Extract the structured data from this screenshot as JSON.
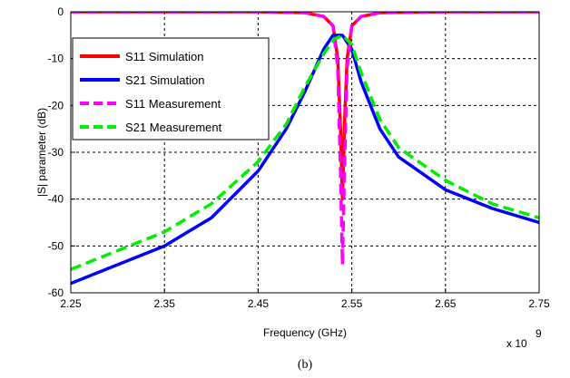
{
  "caption": "(b)",
  "chart_data": {
    "type": "line",
    "title": "",
    "xlabel": "Frequency (GHz)",
    "ylabel": "|S| parameter (dB)",
    "x_multiplier_label": "x 10",
    "x_multiplier_exponent": "9",
    "xlim": [
      2.25,
      2.75
    ],
    "ylim": [
      -60,
      0
    ],
    "xticks": [
      2.25,
      2.35,
      2.45,
      2.55,
      2.65,
      2.75
    ],
    "xtick_labels": [
      "2.25",
      "2.35",
      "2.45",
      "2.55",
      "2.65",
      "2.75"
    ],
    "yticks": [
      0,
      -10,
      -20,
      -30,
      -40,
      -50,
      -60
    ],
    "ytick_labels": [
      "0",
      "-10",
      "-20",
      "-30",
      "-40",
      "-50",
      "-60"
    ],
    "grid": true,
    "legend_position": "upper-left",
    "series": [
      {
        "name": "S11 Simulation",
        "color": "#ff0000",
        "dash": "solid",
        "x": [
          2.25,
          2.35,
          2.45,
          2.5,
          2.52,
          2.53,
          2.535,
          2.538,
          2.54,
          2.542,
          2.545,
          2.55,
          2.56,
          2.58,
          2.65,
          2.75
        ],
        "y": [
          0,
          0,
          0,
          -0.2,
          -1,
          -3,
          -10,
          -25,
          -40,
          -25,
          -10,
          -3,
          -1,
          -0.2,
          0,
          0
        ]
      },
      {
        "name": "S21 Simulation",
        "color": "#0000ff",
        "dash": "solid",
        "x": [
          2.25,
          2.3,
          2.35,
          2.4,
          2.45,
          2.48,
          2.5,
          2.52,
          2.53,
          2.54,
          2.55,
          2.56,
          2.58,
          2.6,
          2.65,
          2.7,
          2.75
        ],
        "y": [
          -58,
          -54,
          -50,
          -44,
          -34,
          -25,
          -17,
          -8,
          -5,
          -5,
          -8,
          -15,
          -25,
          -31,
          -38,
          -42,
          -45
        ]
      },
      {
        "name": "S11 Measurement",
        "color": "#ff00ff",
        "dash": "dashed",
        "x": [
          2.25,
          2.35,
          2.45,
          2.5,
          2.52,
          2.53,
          2.535,
          2.538,
          2.54,
          2.542,
          2.545,
          2.55,
          2.56,
          2.58,
          2.65,
          2.75
        ],
        "y": [
          0,
          0,
          0,
          -0.2,
          -1,
          -3,
          -12,
          -35,
          -54,
          -35,
          -12,
          -3,
          -1,
          -0.2,
          0,
          0
        ]
      },
      {
        "name": "S21 Measurement",
        "color": "#00ee00",
        "dash": "dashed",
        "x": [
          2.25,
          2.3,
          2.35,
          2.4,
          2.45,
          2.48,
          2.5,
          2.52,
          2.53,
          2.54,
          2.55,
          2.56,
          2.58,
          2.6,
          2.65,
          2.7,
          2.75
        ],
        "y": [
          -55,
          -51,
          -47,
          -41,
          -32,
          -24,
          -16,
          -9,
          -6,
          -5,
          -7,
          -13,
          -23,
          -29,
          -36,
          -41,
          -44
        ]
      }
    ]
  }
}
